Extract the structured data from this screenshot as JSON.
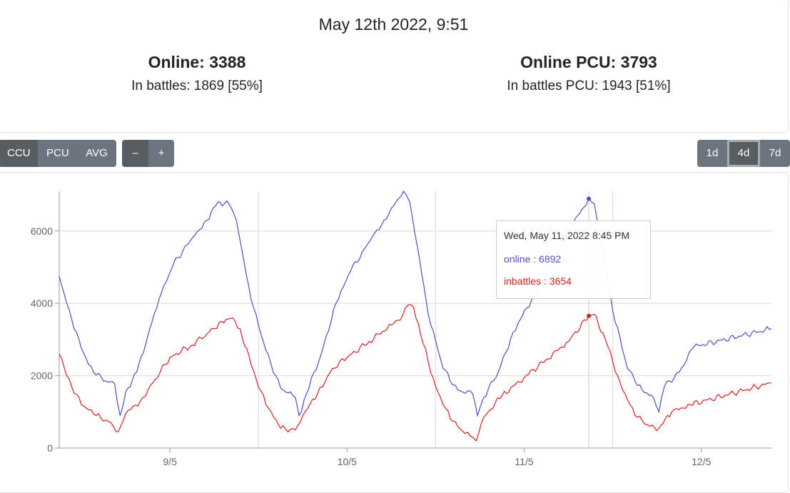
{
  "stats": {
    "datetime": "May 12th 2022, 9:51",
    "online": "Online: 3388",
    "in_battles": "In battles: 1869 [55%]",
    "online_pcu": "Online PCU: 3793",
    "in_battles_pcu": "In battles PCU: 1943 [51%]"
  },
  "toolbar": {
    "mode_buttons": [
      "CCU",
      "PCU",
      "AVG"
    ],
    "active_mode": "CCU",
    "zoom_out": "–",
    "zoom_in": "+",
    "range_buttons": [
      "1d",
      "4d",
      "7d"
    ],
    "active_range": "4d"
  },
  "tooltip": {
    "title": "Wed, May 11, 2022 8:45 PM",
    "online_label": "online : 6892",
    "inbattles_label": "inbattles : 3654"
  },
  "colors": {
    "online": "#4f4fbf",
    "inbattles": "#d42121",
    "grid": "#d9d9d9",
    "axis": "#999999",
    "button": "#6c757d",
    "button_active": "#565e64"
  },
  "chart_data": {
    "type": "line",
    "x_start": "2022-05-08 21:00",
    "x_end": "2022-05-12 21:30",
    "x_ticks": [
      "9/5",
      "10/5",
      "11/5",
      "12/5"
    ],
    "ylim": [
      0,
      7100
    ],
    "y_ticks": [
      0,
      2000,
      4000,
      6000
    ],
    "grid": true,
    "series": [
      {
        "name": "online",
        "color": "#4f4fbf",
        "points": [
          [
            "2022-05-08 21:00",
            4750
          ],
          [
            "2022-05-08 23:00",
            3300
          ],
          [
            "2022-05-09 01:00",
            2300
          ],
          [
            "2022-05-09 03:00",
            1850
          ],
          [
            "2022-05-09 04:30",
            1780
          ],
          [
            "2022-05-09 05:15",
            900
          ],
          [
            "2022-05-09 06:00",
            1550
          ],
          [
            "2022-05-09 07:30",
            2100
          ],
          [
            "2022-05-09 09:00",
            3100
          ],
          [
            "2022-05-09 10:30",
            4100
          ],
          [
            "2022-05-09 12:30",
            5100
          ],
          [
            "2022-05-09 15:00",
            5800
          ],
          [
            "2022-05-09 17:00",
            6300
          ],
          [
            "2022-05-09 18:30",
            6800
          ],
          [
            "2022-05-09 20:00",
            6750
          ],
          [
            "2022-05-09 21:00",
            6300
          ],
          [
            "2022-05-09 22:00",
            5200
          ],
          [
            "2022-05-09 23:00",
            4100
          ],
          [
            "2022-05-10 01:00",
            2700
          ],
          [
            "2022-05-10 03:00",
            1650
          ],
          [
            "2022-05-10 05:00",
            1400
          ],
          [
            "2022-05-10 05:30",
            900
          ],
          [
            "2022-05-10 06:30",
            1500
          ],
          [
            "2022-05-10 08:30",
            2600
          ],
          [
            "2022-05-10 10:30",
            4000
          ],
          [
            "2022-05-10 12:30",
            4900
          ],
          [
            "2022-05-10 15:00",
            5700
          ],
          [
            "2022-05-10 17:00",
            6300
          ],
          [
            "2022-05-10 19:00",
            6900
          ],
          [
            "2022-05-10 19:40",
            7100
          ],
          [
            "2022-05-10 20:30",
            6800
          ],
          [
            "2022-05-10 21:30",
            5600
          ],
          [
            "2022-05-10 23:00",
            3700
          ],
          [
            "2022-05-11 01:00",
            2200
          ],
          [
            "2022-05-11 03:00",
            1600
          ],
          [
            "2022-05-11 05:00",
            1500
          ],
          [
            "2022-05-11 05:40",
            900
          ],
          [
            "2022-05-11 06:30",
            1400
          ],
          [
            "2022-05-11 08:30",
            2100
          ],
          [
            "2022-05-11 10:30",
            3200
          ],
          [
            "2022-05-11 13:00",
            4100
          ],
          [
            "2022-05-11 15:30",
            5000
          ],
          [
            "2022-05-11 18:00",
            6000
          ],
          [
            "2022-05-11 20:45",
            6892
          ],
          [
            "2022-05-11 21:30",
            6750
          ],
          [
            "2022-05-11 22:30",
            5600
          ],
          [
            "2022-05-12 00:00",
            3800
          ],
          [
            "2022-05-12 02:00",
            2200
          ],
          [
            "2022-05-12 04:00",
            1600
          ],
          [
            "2022-05-12 05:30",
            1400
          ],
          [
            "2022-05-12 06:15",
            1000
          ],
          [
            "2022-05-12 07:00",
            1700
          ],
          [
            "2022-05-12 09:00",
            2100
          ],
          [
            "2022-05-12 11:00",
            2800
          ],
          [
            "2022-05-12 21:30",
            3300
          ]
        ]
      },
      {
        "name": "inbattles",
        "color": "#d42121",
        "points": [
          [
            "2022-05-08 21:00",
            2600
          ],
          [
            "2022-05-08 22:00",
            2000
          ],
          [
            "2022-05-09 00:00",
            1200
          ],
          [
            "2022-05-09 02:00",
            900
          ],
          [
            "2022-05-09 04:00",
            700
          ],
          [
            "2022-05-09 05:00",
            450
          ],
          [
            "2022-05-09 06:00",
            950
          ],
          [
            "2022-05-09 08:00",
            1300
          ],
          [
            "2022-05-09 10:00",
            1900
          ],
          [
            "2022-05-09 12:00",
            2500
          ],
          [
            "2022-05-09 15:00",
            2850
          ],
          [
            "2022-05-09 17:00",
            3150
          ],
          [
            "2022-05-09 19:00",
            3500
          ],
          [
            "2022-05-09 20:30",
            3600
          ],
          [
            "2022-05-09 21:30",
            3300
          ],
          [
            "2022-05-09 23:00",
            2300
          ],
          [
            "2022-05-10 01:00",
            1200
          ],
          [
            "2022-05-10 03:00",
            550
          ],
          [
            "2022-05-10 05:00",
            500
          ],
          [
            "2022-05-10 06:00",
            900
          ],
          [
            "2022-05-10 08:00",
            1500
          ],
          [
            "2022-05-10 10:00",
            2200
          ],
          [
            "2022-05-10 12:00",
            2500
          ],
          [
            "2022-05-10 15:00",
            2950
          ],
          [
            "2022-05-10 18:00",
            3400
          ],
          [
            "2022-05-10 19:30",
            3650
          ],
          [
            "2022-05-10 20:15",
            3950
          ],
          [
            "2022-05-10 21:00",
            3900
          ],
          [
            "2022-05-10 22:00",
            3100
          ],
          [
            "2022-05-11 00:00",
            1700
          ],
          [
            "2022-05-11 02:00",
            800
          ],
          [
            "2022-05-11 04:00",
            400
          ],
          [
            "2022-05-11 05:00",
            300
          ],
          [
            "2022-05-11 05:30",
            200
          ],
          [
            "2022-05-11 06:30",
            850
          ],
          [
            "2022-05-11 09:00",
            1450
          ],
          [
            "2022-05-11 12:00",
            1950
          ],
          [
            "2022-05-11 15:00",
            2450
          ],
          [
            "2022-05-11 18:00",
            2950
          ],
          [
            "2022-05-11 20:45",
            3654
          ],
          [
            "2022-05-11 21:30",
            3700
          ],
          [
            "2022-05-11 23:00",
            3000
          ],
          [
            "2022-05-12 01:00",
            1800
          ],
          [
            "2022-05-12 03:00",
            900
          ],
          [
            "2022-05-12 05:00",
            600
          ],
          [
            "2022-05-12 06:15",
            550
          ],
          [
            "2022-05-12 08:00",
            1000
          ],
          [
            "2022-05-12 10:30",
            1200
          ],
          [
            "2022-05-12 21:30",
            1800
          ]
        ]
      }
    ],
    "highlight": {
      "x": "2022-05-11 20:45",
      "online": 6892,
      "inbattles": 3654
    }
  }
}
